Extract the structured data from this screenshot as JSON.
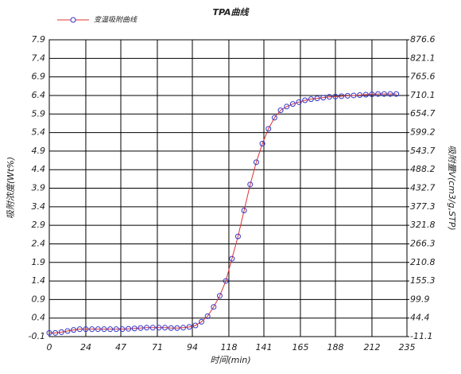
{
  "chart_data": {
    "type": "line",
    "title": "TPA曲线",
    "x_label": "时间(min)",
    "y_label": "吸附浓度(Wt%)",
    "y2_label": "吸附量V(cm3/g,STP)",
    "x": [
      0,
      4,
      8,
      12,
      16,
      20,
      24,
      28,
      32,
      36,
      40,
      44,
      48,
      52,
      56,
      60,
      64,
      68,
      72,
      76,
      80,
      84,
      88,
      92,
      96,
      100,
      104,
      108,
      112,
      116,
      120,
      124,
      128,
      132,
      136,
      140,
      144,
      148,
      152,
      156,
      160,
      164,
      168,
      172,
      176,
      180,
      184,
      188,
      192,
      196,
      200,
      204,
      208,
      212,
      216,
      220,
      224,
      228
    ],
    "series": [
      {
        "name": "变温吸附曲线",
        "color": "#e03030",
        "marker_color": "#3434c8",
        "values": [
          0.0,
          0.0,
          0.02,
          0.05,
          0.08,
          0.1,
          0.1,
          0.1,
          0.1,
          0.1,
          0.1,
          0.1,
          0.1,
          0.11,
          0.12,
          0.13,
          0.14,
          0.14,
          0.14,
          0.14,
          0.13,
          0.13,
          0.14,
          0.16,
          0.2,
          0.3,
          0.45,
          0.7,
          1.0,
          1.4,
          2.0,
          2.6,
          3.3,
          4.0,
          4.6,
          5.1,
          5.5,
          5.8,
          6.0,
          6.1,
          6.17,
          6.22,
          6.27,
          6.3,
          6.32,
          6.34,
          6.36,
          6.37,
          6.38,
          6.39,
          6.4,
          6.41,
          6.42,
          6.43,
          6.44,
          6.44,
          6.44,
          6.44
        ]
      }
    ],
    "xlim": [
      0,
      235
    ],
    "xticks": [
      0,
      24,
      47,
      71,
      94,
      118,
      141,
      165,
      188,
      212,
      235
    ],
    "ylim": [
      -0.1,
      7.9
    ],
    "yticks": [
      -0.1,
      0.4,
      0.9,
      1.4,
      1.9,
      2.4,
      2.9,
      3.4,
      3.9,
      4.4,
      4.9,
      5.4,
      5.9,
      6.4,
      6.9,
      7.4,
      7.9
    ],
    "y2lim": [
      -11.1,
      876.6
    ],
    "y2ticks": [
      -11.1,
      44.4,
      99.9,
      155.3,
      210.8,
      266.3,
      321.8,
      377.3,
      432.7,
      488.2,
      543.7,
      599.2,
      654.7,
      710.1,
      765.6,
      821.1,
      876.6
    ],
    "grid": true
  }
}
